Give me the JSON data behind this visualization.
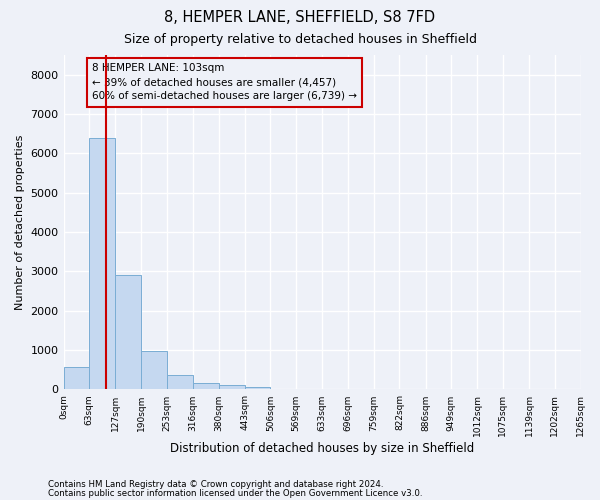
{
  "title1": "8, HEMPER LANE, SHEFFIELD, S8 7FD",
  "title2": "Size of property relative to detached houses in Sheffield",
  "xlabel": "Distribution of detached houses by size in Sheffield",
  "ylabel": "Number of detached properties",
  "bar_color": "#c5d8f0",
  "bar_edge_color": "#7aadd4",
  "vline_color": "#cc0000",
  "vline_x": 103,
  "annotation_title": "8 HEMPER LANE: 103sqm",
  "annotation_line1": "← 39% of detached houses are smaller (4,457)",
  "annotation_line2": "60% of semi-detached houses are larger (6,739) →",
  "footnote1": "Contains HM Land Registry data © Crown copyright and database right 2024.",
  "footnote2": "Contains public sector information licensed under the Open Government Licence v3.0.",
  "bin_edges": [
    0,
    63,
    127,
    190,
    253,
    316,
    380,
    443,
    506,
    569,
    633,
    696,
    759,
    822,
    886,
    949,
    1012,
    1075,
    1139,
    1202,
    1265
  ],
  "bar_heights": [
    560,
    6400,
    2920,
    980,
    375,
    175,
    120,
    75,
    0,
    0,
    0,
    0,
    0,
    0,
    0,
    0,
    0,
    0,
    0,
    0
  ],
  "ylim": [
    0,
    8500
  ],
  "yticks": [
    0,
    1000,
    2000,
    3000,
    4000,
    5000,
    6000,
    7000,
    8000
  ],
  "background_color": "#eef1f8",
  "grid_color": "#ffffff",
  "tick_labels": [
    "0sqm",
    "63sqm",
    "127sqm",
    "190sqm",
    "253sqm",
    "316sqm",
    "380sqm",
    "443sqm",
    "506sqm",
    "569sqm",
    "633sqm",
    "696sqm",
    "759sqm",
    "822sqm",
    "886sqm",
    "949sqm",
    "1012sqm",
    "1075sqm",
    "1139sqm",
    "1202sqm",
    "1265sqm"
  ]
}
